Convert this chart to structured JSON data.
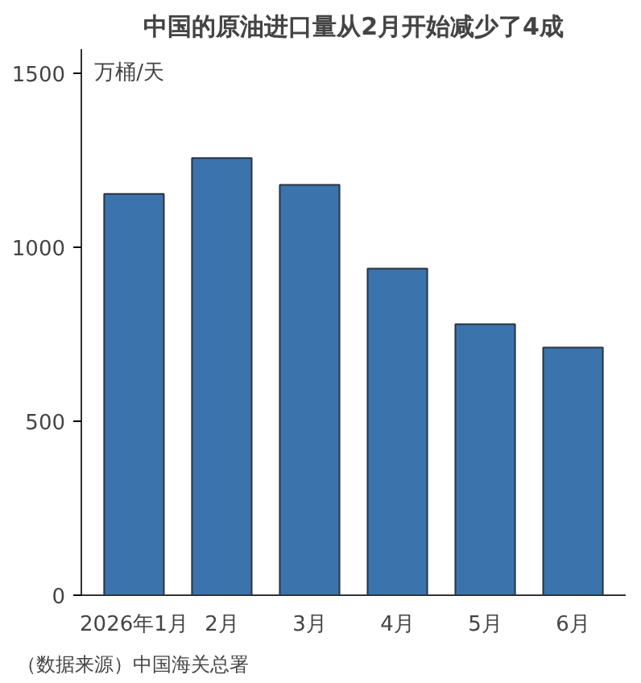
{
  "chart_data": {
    "type": "bar",
    "title": "中国的原油进口量从2月开始减少了4成",
    "ylabel": "万桶/天",
    "categories": [
      "2026年1月",
      "2月",
      "3月",
      "4月",
      "5月",
      "6月"
    ],
    "values": [
      1154,
      1257,
      1180,
      939,
      779,
      712
    ],
    "color": "#3b73ad",
    "ylim": [
      0,
      1570
    ],
    "yticks": [
      0,
      500,
      1000,
      1500
    ],
    "grid": false,
    "annotations": [
      "（数据来源）中国海关总署"
    ]
  }
}
